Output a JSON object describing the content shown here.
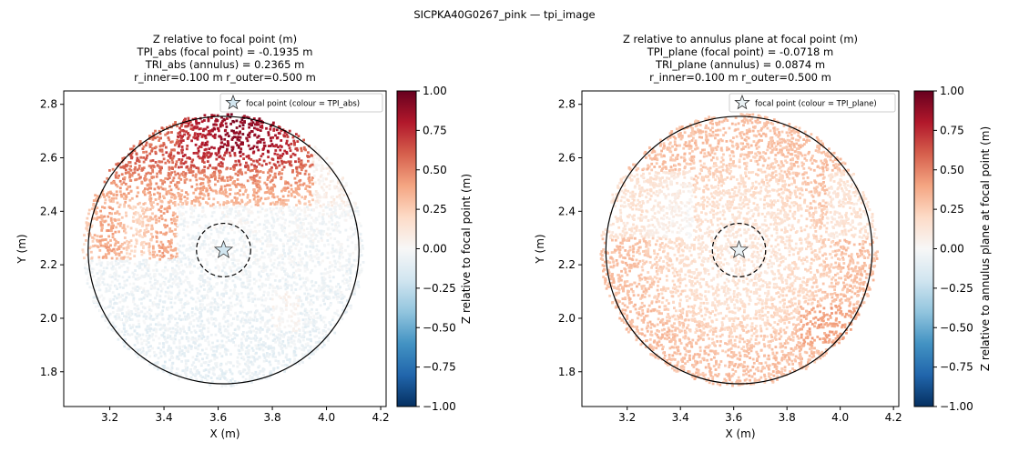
{
  "figure": {
    "suptitle": "SICPKA40G0267_pink — tpi_image"
  },
  "chart_data": [
    {
      "type": "scatter",
      "title_lines": [
        "Z relative to focal point (m)",
        "TPI_abs (focal point) = -0.1935 m",
        "TRI_abs (annulus) = 0.2365 m",
        "r_inner=0.100 m  r_outer=0.500 m"
      ],
      "xlabel": "X (m)",
      "ylabel": "Y (m)",
      "xlim": [
        3.03,
        4.22
      ],
      "ylim": [
        1.67,
        2.85
      ],
      "xticks": [
        3.2,
        3.4,
        3.6,
        3.8,
        4.0,
        4.2
      ],
      "yticks": [
        1.8,
        2.0,
        2.2,
        2.4,
        2.6,
        2.8
      ],
      "xtick_labels": [
        "3.2",
        "3.4",
        "3.6",
        "3.8",
        "4.0",
        "4.2"
      ],
      "ytick_labels": [
        "1.8",
        "2.0",
        "2.2",
        "2.4",
        "2.6",
        "2.8"
      ],
      "focal_point": [
        3.62,
        2.255
      ],
      "r_inner": 0.1,
      "r_outer": 0.5,
      "legend": {
        "label": "focal point (colour = TPI_abs)",
        "loc": "upper right"
      },
      "colorbar": {
        "label": "Z relative to focal point (m)",
        "cmap": "RdBu_r",
        "vmin": -1.0,
        "vmax": 1.0,
        "ticks": [
          "1.00",
          "0.75",
          "0.50",
          "0.25",
          "0.00",
          "−0.25",
          "−0.50",
          "−0.75",
          "−1.00"
        ]
      },
      "grid": false
    },
    {
      "type": "scatter",
      "title_lines": [
        "Z relative to annulus plane at focal point (m)",
        "TPI_plane (focal point) = -0.0718 m",
        "TRI_plane (annulus) = 0.0874 m",
        "r_inner=0.100 m  r_outer=0.500 m"
      ],
      "xlabel": "X (m)",
      "ylabel": "Y (m)",
      "xlim": [
        3.03,
        4.22
      ],
      "ylim": [
        1.67,
        2.85
      ],
      "xticks": [
        3.2,
        3.4,
        3.6,
        3.8,
        4.0,
        4.2
      ],
      "yticks": [
        1.8,
        2.0,
        2.2,
        2.4,
        2.6,
        2.8
      ],
      "xtick_labels": [
        "3.2",
        "3.4",
        "3.6",
        "3.8",
        "4.0",
        "4.2"
      ],
      "ytick_labels": [
        "1.8",
        "2.0",
        "2.2",
        "2.4",
        "2.6",
        "2.8"
      ],
      "focal_point": [
        3.62,
        2.255
      ],
      "r_inner": 0.1,
      "r_outer": 0.5,
      "legend": {
        "label": "focal point (colour = TPI_plane)",
        "loc": "upper right"
      },
      "colorbar": {
        "label": "Z relative to annulus plane at focal point (m)",
        "cmap": "RdBu_r",
        "vmin": -1.0,
        "vmax": 1.0,
        "ticks": [
          "1.00",
          "0.75",
          "0.50",
          "0.25",
          "0.00",
          "−0.25",
          "−0.50",
          "−0.75",
          "−1.00"
        ]
      },
      "grid": false
    }
  ]
}
